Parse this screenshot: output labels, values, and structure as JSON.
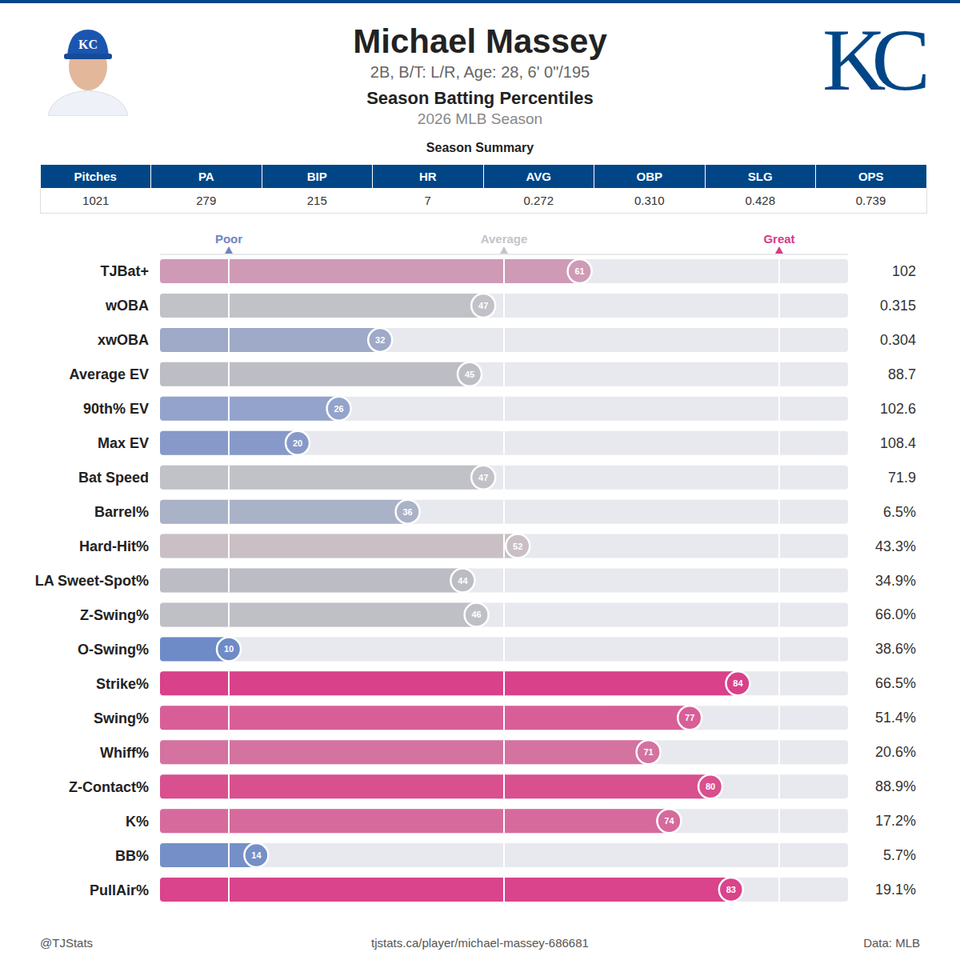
{
  "header": {
    "title": "Michael Massey",
    "subtitle": "2B, B/T: L/R, Age: 28, 6' 0\"/195",
    "heading": "Season Batting Percentiles",
    "season": "2026 MLB Season",
    "logo": "KC"
  },
  "summary": {
    "title": "Season Summary",
    "columns": [
      "Pitches",
      "PA",
      "BIP",
      "HR",
      "AVG",
      "OBP",
      "SLG",
      "OPS"
    ],
    "values": [
      "1021",
      "279",
      "215",
      "7",
      "0.272",
      "0.310",
      "0.428",
      "0.739"
    ]
  },
  "chart_data": {
    "type": "bar",
    "orientation": "horizontal",
    "categories": [
      "TJBat+",
      "wOBA",
      "xwOBA",
      "Average EV",
      "90th% EV",
      "Max EV",
      "Bat Speed",
      "Barrel%",
      "Hard-Hit%",
      "LA Sweet-Spot%",
      "Z-Swing%",
      "O-Swing%",
      "Strike%",
      "Swing%",
      "Whiff%",
      "Z-Contact%",
      "K%",
      "BB%",
      "PullAir%"
    ],
    "values": [
      61,
      47,
      32,
      45,
      26,
      20,
      47,
      36,
      52,
      44,
      46,
      10,
      84,
      77,
      71,
      80,
      74,
      14,
      83
    ],
    "colors": [
      "#cf9ab5",
      "#c1c2c8",
      "#9eaac8",
      "#bdbec5",
      "#93a3cc",
      "#8799c8",
      "#c1c2c8",
      "#aab2c8",
      "#c9bfc4",
      "#bbbcc4",
      "#bfc0c6",
      "#6e8bc8",
      "#d9418a",
      "#d85e98",
      "#d472a0",
      "#d9508f",
      "#d66a9c",
      "#7590c8",
      "#d9448c"
    ],
    "xlim": [
      0,
      100
    ],
    "xticks": [
      {
        "value": 10,
        "label": "Poor"
      },
      {
        "value": 50,
        "label": "Average"
      },
      {
        "value": 90,
        "label": "Great"
      }
    ],
    "grid": true,
    "data_labels": true,
    "stats": [
      "102",
      "0.315",
      "0.304",
      "88.7",
      "102.6",
      "108.4",
      "71.9",
      "6.5%",
      "43.3%",
      "34.9%",
      "66.0%",
      "38.6%",
      "66.5%",
      "51.4%",
      "20.6%",
      "88.9%",
      "17.2%",
      "5.7%",
      "19.1%"
    ]
  },
  "footer": {
    "left": "@TJStats",
    "center": "tjstats.ca/player/michael-massey-686681",
    "right": "Data: MLB"
  }
}
